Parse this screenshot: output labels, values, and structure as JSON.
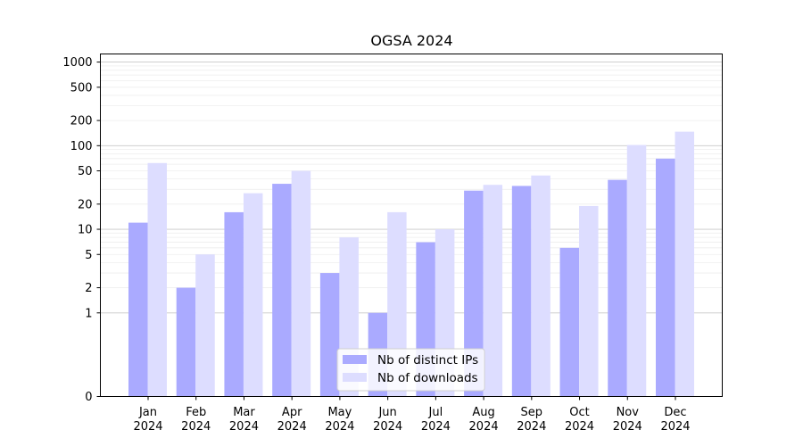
{
  "chart_data": {
    "type": "bar",
    "title": "OGSA 2024",
    "categories": [
      "Jan\n2024",
      "Feb\n2024",
      "Mar\n2024",
      "Apr\n2024",
      "May\n2024",
      "Jun\n2024",
      "Jul\n2024",
      "Aug\n2024",
      "Sep\n2024",
      "Oct\n2024",
      "Nov\n2024",
      "Dec\n2024"
    ],
    "series": [
      {
        "name": "Nb of distinct IPs",
        "color": "#aaaaff",
        "values": [
          12,
          2,
          16,
          35,
          3,
          1,
          7,
          29,
          33,
          6,
          39,
          70
        ]
      },
      {
        "name": "Nb of downloads",
        "color": "#ddddff",
        "values": [
          62,
          5,
          27,
          50,
          8,
          16,
          10,
          34,
          44,
          19,
          102,
          147
        ]
      }
    ],
    "yscale": "symlog",
    "yticks": [
      0,
      1,
      2,
      5,
      10,
      20,
      50,
      100,
      200,
      500,
      1000
    ],
    "ylim": [
      0,
      1250
    ],
    "legend_position": "bottom-center",
    "grid": true
  }
}
